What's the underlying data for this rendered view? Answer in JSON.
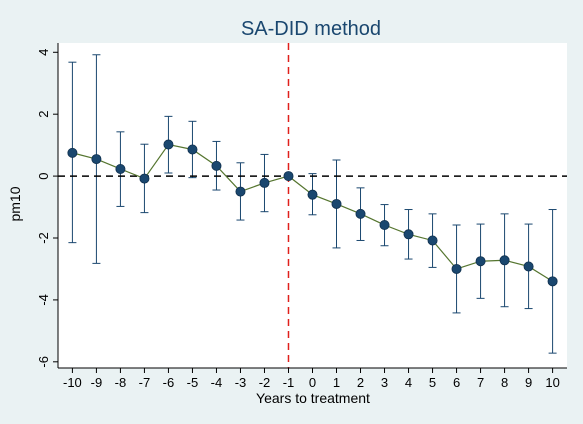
{
  "chart_data": {
    "type": "scatter",
    "title": "SA-DID method",
    "xlabel": "Years to treatment",
    "ylabel": "pm10",
    "xlim": [
      -10.6,
      10.6
    ],
    "ylim": [
      -6.2,
      4.3
    ],
    "x_ticks": [
      "-10",
      "-9",
      "-8",
      "-7",
      "-6",
      "-5",
      "-4",
      "-3",
      "-2",
      "-1",
      "0",
      "1",
      "2",
      "3",
      "4",
      "5",
      "6",
      "7",
      "8",
      "9",
      "10"
    ],
    "y_ticks": [
      -6,
      -4,
      -2,
      0,
      2,
      4
    ],
    "y_tick_labels": [
      "-6",
      "-4",
      "-2",
      "0",
      "2",
      "4"
    ],
    "reference_lines": {
      "horizontal_y": 0,
      "vertical_x": -1
    },
    "series": [
      {
        "x": [
          -10,
          -9,
          -8,
          -7,
          -6,
          -5,
          -4,
          -3,
          -2,
          -1,
          0,
          1,
          2,
          3,
          4,
          5,
          6,
          7,
          8,
          9,
          10
        ],
        "estimate": [
          0.75,
          0.55,
          0.23,
          -0.08,
          1.02,
          0.86,
          0.33,
          -0.5,
          -0.22,
          0.0,
          -0.6,
          -0.9,
          -1.22,
          -1.58,
          -1.88,
          -2.08,
          -3.0,
          -2.75,
          -2.72,
          -2.92,
          -3.4
        ],
        "ci_low": [
          -2.15,
          -2.82,
          -0.98,
          -1.18,
          0.1,
          -0.05,
          -0.45,
          -1.42,
          -1.15,
          0.0,
          -1.25,
          -2.32,
          -2.08,
          -2.25,
          -2.68,
          -2.95,
          -4.42,
          -3.95,
          -4.22,
          -4.28,
          -5.72
        ],
        "ci_high": [
          3.68,
          3.92,
          1.43,
          1.03,
          1.93,
          1.77,
          1.12,
          0.43,
          0.7,
          0.0,
          0.08,
          0.52,
          -0.38,
          -0.92,
          -1.08,
          -1.22,
          -1.58,
          -1.55,
          -1.22,
          -1.55,
          -1.08
        ]
      }
    ],
    "colors": {
      "background": "#eaf2f3",
      "plot_background": "#ffffff",
      "marker": "#1a476f",
      "connector": "#55752f",
      "ci_bar": "#1a476f",
      "vline": "#e0201b",
      "hline": "#000000",
      "title": "#1a476f"
    },
    "grid": false,
    "legend": "none"
  }
}
